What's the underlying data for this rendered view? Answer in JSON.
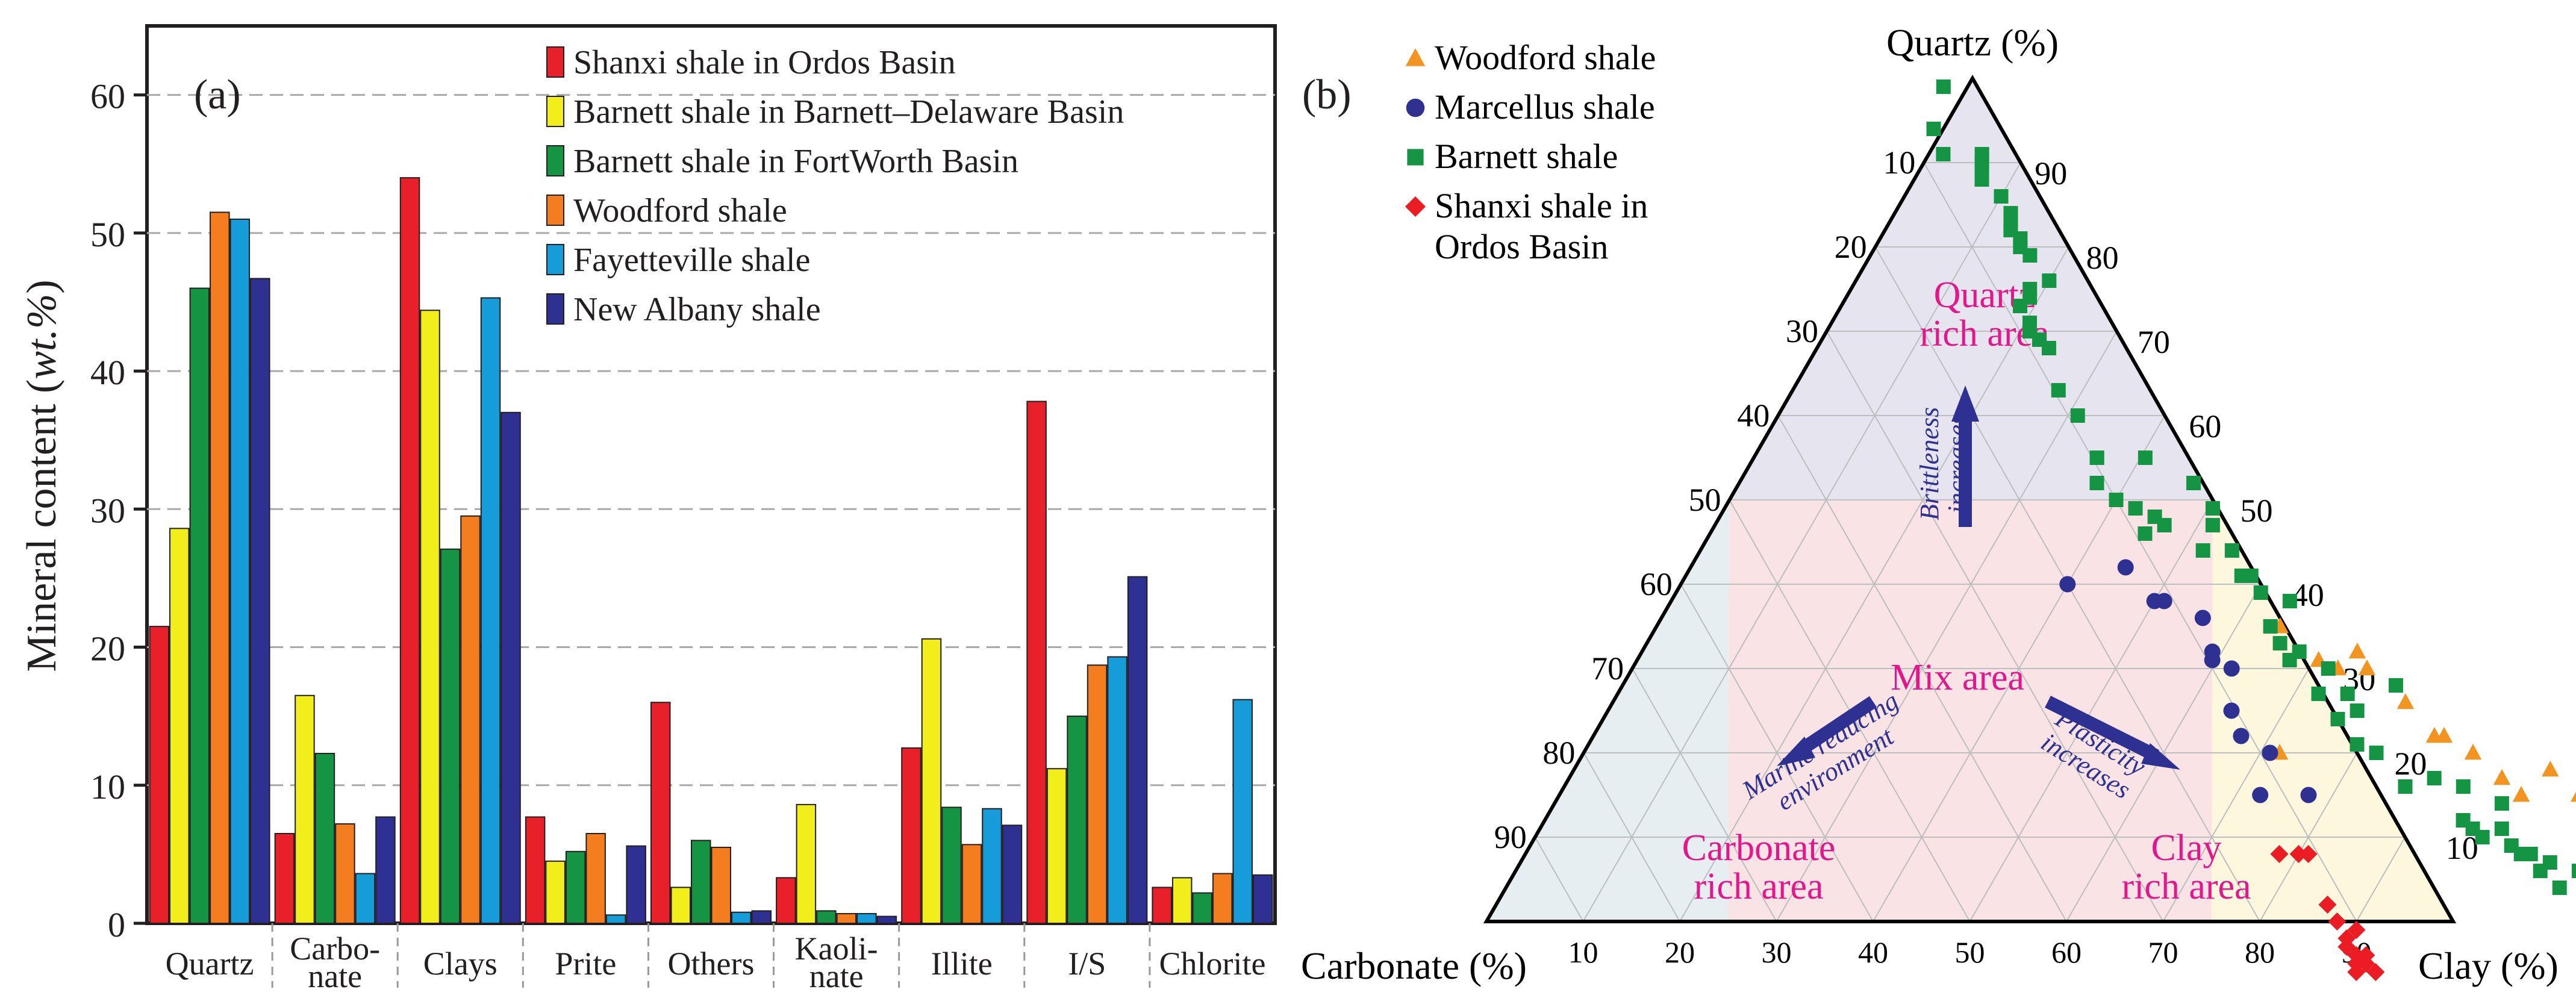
{
  "chart_data": [
    {
      "type": "bar",
      "panel_label": "(a)",
      "ylabel_prefix": "Mineral content (",
      "ylabel_unit": "wt.%",
      "ylabel_suffix": ")",
      "ylim": [
        0,
        65
      ],
      "yticks": [
        0,
        10,
        20,
        30,
        40,
        50,
        60
      ],
      "grid": true,
      "legend_position": "top-right",
      "categories": [
        "Quartz",
        "Carbo-\nnate",
        "Clays",
        "Prite",
        "Others",
        "Kaoli-\nnate",
        "Illite",
        "I/S",
        "Chlorite"
      ],
      "series": [
        {
          "name": "Shanxi shale in Ordos Basin",
          "color": "#e8202a",
          "values": [
            21.5,
            6.5,
            54,
            7.7,
            16,
            3.3,
            12.7,
            37.8,
            2.6
          ]
        },
        {
          "name": "Barnett shale in Barnett–Delaware Basin",
          "color": "#f2ee1c",
          "values": [
            28.6,
            16.5,
            44.4,
            4.5,
            2.6,
            8.6,
            20.6,
            11.2,
            3.3
          ]
        },
        {
          "name": "Barnett shale in FortWorth Basin",
          "color": "#159443",
          "values": [
            46,
            12.3,
            27.1,
            5.2,
            6,
            0.9,
            8.4,
            15,
            2.2
          ]
        },
        {
          "name": "Woodford shale",
          "color": "#f47d1f",
          "values": [
            51.5,
            7.2,
            29.5,
            6.5,
            5.5,
            0.7,
            5.7,
            18.7,
            3.6
          ]
        },
        {
          "name": "Fayetteville shale",
          "color": "#159cd9",
          "values": [
            51,
            3.6,
            45.3,
            0.6,
            0.8,
            0.7,
            8.3,
            19.3,
            16.2
          ]
        },
        {
          "name": "New Albany shale",
          "color": "#2e3192",
          "values": [
            46.7,
            7.7,
            37,
            5.6,
            0.9,
            0.5,
            7.1,
            25.1,
            3.5
          ]
        }
      ]
    },
    {
      "type": "ternary",
      "panel_label": "(b)",
      "axis_labels": {
        "top": "Quartz (%)",
        "left": "Carbonate (%)",
        "right": "Clay (%)"
      },
      "tick_values": [
        10,
        20,
        30,
        40,
        50,
        60,
        70,
        80,
        90
      ],
      "regions": [
        {
          "name": "quartz-rich",
          "label_lines": [
            "Quartz",
            "rich area"
          ],
          "color": "#e6e4ee"
        },
        {
          "name": "mix",
          "label_lines": [
            "Mix area"
          ],
          "color": "#f9e3e4"
        },
        {
          "name": "carbonate-rich",
          "label_lines": [
            "Carbonate",
            "rich area"
          ],
          "color": "#e7eef1"
        },
        {
          "name": "clay-rich",
          "label_lines": [
            "Clay",
            "rich area"
          ],
          "color": "#fdf7dd"
        }
      ],
      "region_label_color": "#e4168c",
      "annotation_color": "#2e3192",
      "annotations": [
        {
          "name": "brittleness",
          "lines": [
            "Brittleness",
            "increases"
          ]
        },
        {
          "name": "marine",
          "lines": [
            "Marine reducing",
            "environment"
          ]
        },
        {
          "name": "plasticity",
          "lines": [
            "Plasticity",
            "increases"
          ]
        }
      ],
      "series": [
        {
          "name": "Woodford  shale",
          "marker": "triangle",
          "color": "#f39320",
          "points": [
            [
              10,
              88
            ],
            [
              10,
              85
            ],
            [
              8,
              78
            ],
            [
              12,
              73
            ],
            [
              14,
              71
            ],
            [
              12,
              69
            ],
            [
              14,
              67
            ],
            [
              13,
              64
            ],
            [
              15,
              63
            ],
            [
              18,
              60
            ],
            [
              15,
              57
            ],
            [
              17,
              55
            ],
            [
              20,
              52
            ],
            [
              22,
              49
            ],
            [
              22,
              48
            ],
            [
              26,
              45
            ],
            [
              30,
              41
            ],
            [
              32,
              40
            ],
            [
              30,
              38
            ],
            [
              31,
              36
            ],
            [
              35,
              32
            ],
            [
              20,
              32
            ]
          ]
        },
        {
          "name": "Marcellus shale",
          "marker": "circle",
          "color": "#2e3192",
          "points": [
            [
              15,
              35
            ],
            [
              20,
              31
            ],
            [
              15,
              30
            ],
            [
              22,
              28
            ],
            [
              25,
              27
            ],
            [
              30,
              27
            ],
            [
              31,
              25
            ],
            [
              32,
              25
            ],
            [
              36,
              24
            ],
            [
              38,
              19
            ],
            [
              38,
              20
            ],
            [
              42,
              16
            ],
            [
              40,
              10
            ]
          ]
        },
        {
          "name": "Barnett  shale",
          "marker": "square",
          "color": "#159443",
          "points": [
            [
              0,
              80
            ],
            [
              -2,
              79
            ],
            [
              1,
              78
            ],
            [
              -1,
              75
            ],
            [
              -2,
              73
            ],
            [
              3,
              71
            ],
            [
              2,
              69
            ],
            [
              0,
              69
            ],
            [
              4,
              67
            ],
            [
              3,
              66
            ],
            [
              5,
              64
            ],
            [
              6,
              63
            ],
            [
              4,
              61
            ],
            [
              7,
              60
            ],
            [
              6,
              59
            ],
            [
              8,
              58
            ],
            [
              8,
              57
            ],
            [
              9,
              56
            ],
            [
              11,
              55
            ],
            [
              14,
              55
            ],
            [
              10,
              53
            ],
            [
              11,
              52
            ],
            [
              12,
              51
            ],
            [
              16,
              51
            ],
            [
              17,
              48
            ],
            [
              16,
              45
            ],
            [
              20,
              42
            ],
            [
              28,
              44
            ],
            [
              21,
              40
            ],
            [
              25,
              40
            ],
            [
              24,
              38
            ],
            [
              27,
              39
            ],
            [
              27,
              36
            ],
            [
              30,
              37
            ],
            [
              32,
              34
            ],
            [
              31,
              33
            ],
            [
              33,
              32
            ],
            [
              35,
              31
            ],
            [
              38,
              33
            ],
            [
              39,
              30
            ],
            [
              41,
              29
            ],
            [
              41,
              28
            ],
            [
              44,
              27
            ],
            [
              47,
              25
            ],
            [
              44,
              24
            ],
            [
              49,
              25
            ],
            [
              52,
              23
            ],
            [
              47,
              20
            ],
            [
              48,
              19
            ],
            [
              46,
              18
            ],
            [
              55,
              18
            ],
            [
              49,
              17
            ],
            [
              50,
              15
            ],
            [
              52,
              13
            ],
            [
              55,
              13
            ],
            [
              55,
              13
            ],
            [
              60,
              11
            ],
            [
              63,
              9
            ],
            [
              68,
              8
            ],
            [
              69,
              7
            ],
            [
              71,
              6
            ],
            [
              70,
              6
            ],
            [
              73,
              5
            ],
            [
              75,
              6
            ],
            [
              74,
              6
            ],
            [
              76,
              8
            ],
            [
              79,
              6
            ],
            [
              81,
              5
            ],
            [
              80,
              5
            ],
            [
              82,
              4
            ],
            [
              83,
              4
            ],
            [
              84,
              4
            ],
            [
              86,
              3
            ],
            [
              88,
              1
            ],
            [
              89,
              1
            ],
            [
              91,
              1
            ],
            [
              90,
              1
            ],
            [
              91,
              -3
            ],
            [
              94,
              -4
            ],
            [
              99,
              -3
            ]
          ]
        },
        {
          "name": "Shanxi shale in\nOrdos Basin",
          "marker": "diamond",
          "color": "#ec1c24",
          "points": [
            [
              8,
              32
            ],
            [
              8,
              34
            ],
            [
              8,
              35
            ],
            [
              2,
              37
            ],
            [
              0,
              38
            ],
            [
              -1,
              40
            ],
            [
              -2,
              39
            ],
            [
              -3,
              39
            ],
            [
              -4,
              40
            ],
            [
              -5,
              40
            ],
            [
              -4,
              41
            ],
            [
              -6,
              40
            ],
            [
              -5,
              41
            ],
            [
              -6,
              42
            ]
          ]
        }
      ]
    }
  ]
}
